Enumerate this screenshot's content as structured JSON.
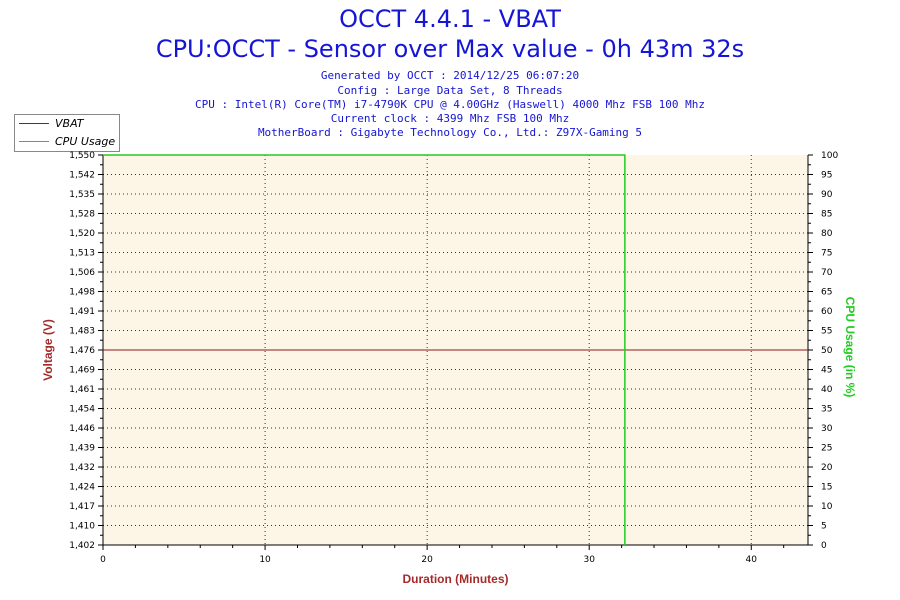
{
  "title": "OCCT 4.4.1 - VBAT",
  "subtitle": "CPU:OCCT - Sensor over Max value - 0h 43m 32s",
  "info_lines": [
    "Generated by OCCT : 2014/12/25 06:07:20",
    "Config : Large Data Set, 8 Threads",
    "CPU : Intel(R) Core(TM) i7-4790K CPU @ 4.00GHz (Haswell) 4000 Mhz FSB 100 Mhz",
    "Current clock : 4399 Mhz FSB 100 Mhz",
    "MotherBoard : Gigabyte Technology Co., Ltd.: Z97X-Gaming 5"
  ],
  "colors": {
    "title": "#1515d6",
    "vbat": "#8b1a1a",
    "cpu": "#22cc22",
    "plot_bg": "#fdf5e6",
    "ylabel_left": "#a52a2a",
    "ylabel_right": "#22cc22",
    "xlabel": "#a52a2a"
  },
  "chart_data": {
    "type": "line",
    "xlabel": "Duration (Minutes)",
    "ylabel_left": "Voltage (V)",
    "ylabel_right": "CPU Usage (in %)",
    "xlim": [
      0,
      43.5
    ],
    "ylim_left": [
      1.402,
      1.55
    ],
    "ylim_right": [
      0,
      100
    ],
    "x_ticks": [
      0,
      10,
      20,
      30,
      40
    ],
    "y_left_ticks": [
      "1,402",
      "1,410",
      "1,417",
      "1,424",
      "1,432",
      "1,439",
      "1,446",
      "1,454",
      "1,461",
      "1,469",
      "1,476",
      "1,483",
      "1,491",
      "1,498",
      "1,506",
      "1,513",
      "1,520",
      "1,528",
      "1,535",
      "1,542",
      "1,550"
    ],
    "y_right_ticks": [
      0,
      5,
      10,
      15,
      20,
      25,
      30,
      35,
      40,
      45,
      50,
      55,
      60,
      65,
      70,
      75,
      80,
      85,
      90,
      95,
      100
    ],
    "grid": true,
    "legend_position": "top-left",
    "series": [
      {
        "name": "VBAT",
        "axis": "left",
        "points": [
          [
            0,
            1.476
          ],
          [
            43.5,
            1.476
          ]
        ]
      },
      {
        "name": "CPU Usage",
        "axis": "right",
        "points": [
          [
            0,
            100
          ],
          [
            32.2,
            100
          ],
          [
            32.2,
            0
          ]
        ]
      }
    ]
  }
}
